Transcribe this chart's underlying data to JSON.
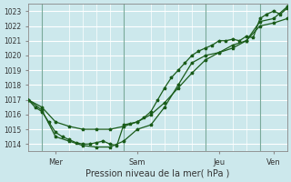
{
  "bg_color": "#cce8ec",
  "grid_color": "#ffffff",
  "line_color": "#1a5c1a",
  "title": "Pression niveau de la mer( hPa )",
  "ylim": [
    1013.5,
    1023.5
  ],
  "yticks": [
    1014,
    1015,
    1016,
    1017,
    1018,
    1019,
    1020,
    1021,
    1022,
    1023
  ],
  "xtick_labels": [
    "Mer",
    "Sam",
    "Jeu",
    "Ven"
  ],
  "xtick_positions": [
    12,
    48,
    84,
    108
  ],
  "vlines_x": [
    6,
    42,
    78,
    102
  ],
  "xlim": [
    0,
    114
  ],
  "series1_x": [
    0,
    3,
    6,
    9,
    12,
    15,
    18,
    21,
    24,
    27,
    30,
    33,
    36,
    39,
    42,
    45,
    48,
    51,
    54,
    57,
    60,
    63,
    66,
    69,
    72,
    75,
    78,
    81,
    84,
    87,
    90,
    93,
    96,
    99,
    102,
    105,
    108,
    111,
    114
  ],
  "series1_y": [
    1017.0,
    1016.5,
    1016.2,
    1015.5,
    1014.8,
    1014.5,
    1014.3,
    1014.1,
    1014.0,
    1014.0,
    1014.1,
    1014.2,
    1014.0,
    1013.9,
    1015.3,
    1015.4,
    1015.5,
    1015.8,
    1016.2,
    1017.0,
    1017.8,
    1018.5,
    1019.0,
    1019.5,
    1020.0,
    1020.3,
    1020.5,
    1020.7,
    1021.0,
    1021.0,
    1021.1,
    1021.0,
    1021.3,
    1021.2,
    1022.5,
    1022.8,
    1023.0,
    1022.8,
    1023.2
  ],
  "series2_x": [
    0,
    6,
    12,
    18,
    24,
    30,
    36,
    42,
    48,
    54,
    60,
    66,
    72,
    78,
    84,
    90,
    96,
    102,
    108,
    114
  ],
  "series2_y": [
    1017.0,
    1016.3,
    1014.5,
    1014.2,
    1013.9,
    1013.8,
    1013.8,
    1014.2,
    1015.0,
    1015.3,
    1016.5,
    1018.0,
    1019.5,
    1020.0,
    1020.2,
    1020.5,
    1021.0,
    1022.3,
    1022.5,
    1023.3
  ],
  "series3_x": [
    0,
    6,
    12,
    18,
    24,
    30,
    36,
    42,
    48,
    54,
    60,
    66,
    72,
    78,
    84,
    90,
    96,
    102,
    108,
    114
  ],
  "series3_y": [
    1017.0,
    1016.5,
    1015.5,
    1015.2,
    1015.0,
    1015.0,
    1015.0,
    1015.2,
    1015.5,
    1016.0,
    1016.8,
    1017.8,
    1018.8,
    1019.7,
    1020.2,
    1020.7,
    1021.0,
    1022.0,
    1022.2,
    1022.5
  ],
  "minor_xtick_step": 6
}
